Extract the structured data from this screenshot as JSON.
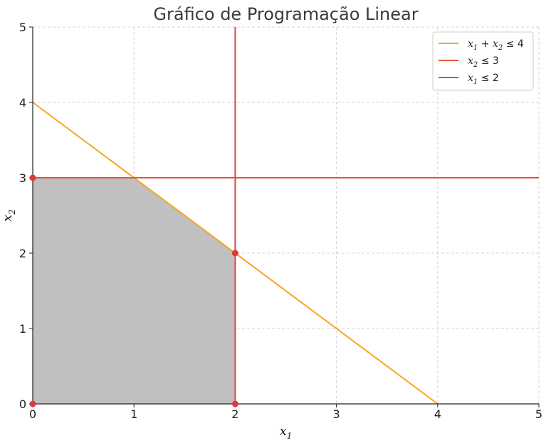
{
  "chart_data": {
    "type": "line",
    "title": "Gráfico de Programação Linear",
    "xlabel": {
      "base": "x",
      "sub": "1"
    },
    "ylabel": {
      "base": "x",
      "sub": "2"
    },
    "xlim": [
      0,
      5
    ],
    "ylim": [
      0,
      5
    ],
    "xticks": [
      "0",
      "1",
      "2",
      "3",
      "4",
      "5"
    ],
    "yticks": [
      "0",
      "1",
      "2",
      "3",
      "4",
      "5"
    ],
    "grid": true,
    "legend_position": "top-right",
    "series": [
      {
        "name": "x1 + x2 ≤ 4",
        "legend": [
          {
            "t": "x",
            "k": "var"
          },
          {
            "t": "1",
            "k": "sub"
          },
          {
            "t": " + ",
            "k": "op"
          },
          {
            "t": "x",
            "k": "var"
          },
          {
            "t": "2",
            "k": "sub"
          },
          {
            "t": " ≤ 4",
            "k": "op"
          }
        ],
        "color": "#f5a623",
        "points": [
          [
            0,
            4
          ],
          [
            4,
            0
          ]
        ]
      },
      {
        "name": "x2 ≤ 3",
        "legend": [
          {
            "t": "x",
            "k": "var"
          },
          {
            "t": "2",
            "k": "sub"
          },
          {
            "t": " ≤ 3",
            "k": "op"
          }
        ],
        "color": "#e8552a",
        "points": [
          [
            0,
            3
          ],
          [
            5,
            3
          ]
        ]
      },
      {
        "name": "x1 ≤ 2",
        "legend": [
          {
            "t": "x",
            "k": "var"
          },
          {
            "t": "1",
            "k": "sub"
          },
          {
            "t": " ≤ 2",
            "k": "op"
          }
        ],
        "color": "#e0444a",
        "points": [
          [
            2,
            0
          ],
          [
            2,
            5
          ]
        ]
      }
    ],
    "feasible_region": {
      "color": "#c0c0c0",
      "polygon": [
        [
          0,
          0
        ],
        [
          0,
          3
        ],
        [
          1,
          3
        ],
        [
          2,
          2
        ],
        [
          2,
          0
        ]
      ]
    },
    "vertices": {
      "color": "#e0383a",
      "points": [
        [
          0,
          0
        ],
        [
          0,
          3
        ],
        [
          2,
          2
        ],
        [
          2,
          0
        ]
      ]
    }
  }
}
